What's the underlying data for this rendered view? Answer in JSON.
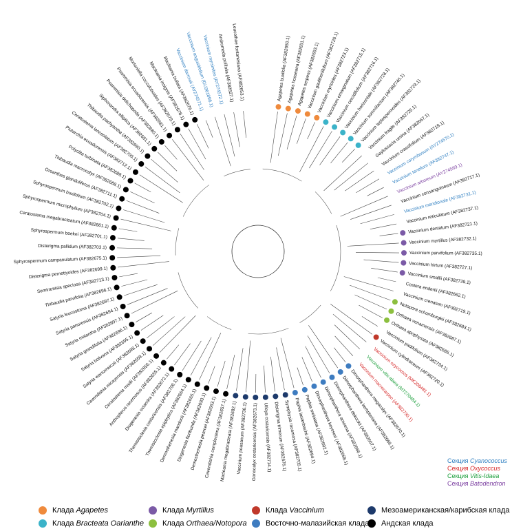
{
  "leaves": [
    {
      "name": "Agapetes buxifolia (AF382650.1)",
      "dot": "#ef8a3c"
    },
    {
      "name": "Agapetes hosseana (AF382651.1)",
      "dot": "#ef8a3c"
    },
    {
      "name": "Agapetes serpens (AF382653.1)",
      "dot": "#ef8a3c"
    },
    {
      "name": "Vaccinium gaultheriifolium (AF382726.1)",
      "dot": "#ef8a3c"
    },
    {
      "name": "Vaccinium myrtoides (AF382723.1)",
      "dot": "#ef8a3c"
    },
    {
      "name": "Vaccinium emarginatum (AF382715.1)",
      "dot": "#3bb3c9"
    },
    {
      "name": "Vaccinium cercidifolium (AF382716.1)",
      "dot": "#3bb3c9"
    },
    {
      "name": "Vaccinium horizontale (AF382728.1)",
      "dot": "#3bb3c9"
    },
    {
      "name": "Vaccinium summifactum (AF382740.1)",
      "dot": "#3bb3c9"
    },
    {
      "name": "Vaccinium leptospermoides (AF382729.1)",
      "dot": "#3bb3c9"
    },
    {
      "name": "Vaccinium fragile (AF382725.1)"
    },
    {
      "name": "Gaylussacia ursina (AF382667.1)"
    },
    {
      "name": "Vaccinium crassifolium (AF382718.1)"
    },
    {
      "name": "Vaccinium corymbosum (AY274570.1)",
      "text_color": "#2f7fc1"
    },
    {
      "name": "Vaccinium tenellum (AF382747.1)",
      "text_color": "#2f7fc1"
    },
    {
      "name": "Vaccinium arboreum (AY274569.1)",
      "text_color": "#7b3fa0"
    },
    {
      "name": "Vaccinium consanguineum (AF382717.1)"
    },
    {
      "name": "Vaccinium meridionale (AF382731.1)",
      "text_color": "#2f7fc1"
    },
    {
      "name": "Vaccinium reticulatum (AF382737.1)"
    },
    {
      "name": "Vaccinium dentatum (AF382721.1)",
      "dot": "#7b5aa6"
    },
    {
      "name": "Vaccinium myrtillus (AF382732.1)",
      "dot": "#7b5aa6"
    },
    {
      "name": "Vaccinium parvifolium (AF382735.1)",
      "dot": "#7b5aa6"
    },
    {
      "name": "Vaccinium hirtum (AF382727.1)",
      "dot": "#7b5aa6"
    },
    {
      "name": "Vaccinium smallii (AF382739.1)",
      "dot": "#7b5aa6"
    },
    {
      "name": "Costera endertii (AF382662.1)"
    },
    {
      "name": "Vaccinium crenatum (AF382719.1)"
    },
    {
      "name": "Notopora schomburgkii (AF382683.1)",
      "dot": "#8cbf3f"
    },
    {
      "name": "Orthaea venamensis (AF382687.1)",
      "dot": "#8cbf3f"
    },
    {
      "name": "Orthaea apophysata (AF382685.1)",
      "dot": "#8cbf3f"
    },
    {
      "name": "Vaccinium padifolium (AF382734.1)"
    },
    {
      "name": "Vaccinium cylindraceum (AF382720.1)",
      "dot": "#c0392b"
    },
    {
      "name": "Vaccinium oxycoccos (MK208481.1)",
      "text_color": "#d62728"
    },
    {
      "name": "Vaccinium vitis-idaea (MT270484.1)",
      "text_color": "#1a9e3a"
    },
    {
      "name": "Vaccinium macrocarpon (AF382730.1)",
      "text_color": "#d62728"
    },
    {
      "name": "Dimorphanthera megacalyx (AF382670.1)",
      "dot": "#3e7cc0"
    },
    {
      "name": "Dimorphanthera kempteriana (AF382669.1)",
      "dot": "#3e7cc0"
    },
    {
      "name": "Dimorphanthera dekockii (AF382667.1)",
      "dot": "#3e7cc0"
    },
    {
      "name": "Dimorphanthera amoena (AF382666.1)",
      "dot": "#3e7cc0"
    },
    {
      "name": "Dimorphanthera keysseri (AF382668.1)",
      "dot": "#3e7cc0"
    },
    {
      "name": "Paphia meiniana (AF382692.1)",
      "dot": "#3e7cc0"
    },
    {
      "name": "Paphia lauterbachii (AF382694.1)",
      "dot": "#3e7cc0"
    },
    {
      "name": "Symphysia racemosa (AF382705.1)",
      "dot": "#1d3a6b"
    },
    {
      "name": "Disterigma trimerum (AF382676.1)",
      "dot": "#1d3a6b"
    },
    {
      "name": "Utleya costaricensis (AF382714.1)",
      "dot": "#1d3a6b"
    },
    {
      "name": "Gonocalyx costaricensis (AF382673.1)",
      "dot": "#1d3a6b"
    },
    {
      "name": "Vaccinium poasanum (AF382736.1)",
      "dot": "#1d3a6b"
    },
    {
      "name": "Macleania megabracteata (AF382682.1)",
      "dot": "#1d3a6b"
    },
    {
      "name": "Cavendishia complectens (AF382657.1)",
      "dot": "#000000"
    },
    {
      "name": "Demosthenesia pearcei (AF382663.1)",
      "dot": "#000000"
    },
    {
      "name": "Diogenesia floribunda (AF382693.1)",
      "dot": "#000000"
    },
    {
      "name": "Demosthenesia mandonii (AF382665.1)",
      "dot": "#000000"
    },
    {
      "name": "Themistoclesia epiphytica (AF382664.1)",
      "dot": "#000000"
    },
    {
      "name": "Themistoclesia costaricensis (AF382706.1)",
      "dot": "#000000"
    },
    {
      "name": "Diogenesia octandra (AF382672.1)",
      "dot": "#000000"
    },
    {
      "name": "Anthopterus racemosus (AF382655.1)",
      "dot": "#000000"
    },
    {
      "name": "Ceratostema madii (AF382656.1)",
      "dot": "#000000"
    },
    {
      "name": "Cavendishia micayensis (AF382659.1)",
      "dot": "#000000"
    },
    {
      "name": "Satyria warszewiczii (AF382698.1)",
      "dot": "#000000"
    },
    {
      "name": "Satyria bolivana (AF382695.1)",
      "dot": "#000000"
    },
    {
      "name": "Satyria grandifolia (AF382696.1)",
      "dot": "#000000"
    },
    {
      "name": "Satyria meiantha (AF382697.1)",
      "dot": "#000000"
    },
    {
      "name": "Satyria panurensis (AF382694.1)",
      "dot": "#000000"
    },
    {
      "name": "Satyria leucostoma (AF382697.1)",
      "dot": "#000000"
    },
    {
      "name": "Thibaudia parvifolia (AF382696.1)",
      "dot": "#000000"
    },
    {
      "name": "Semiramisia speciosa (AF382713.1)",
      "dot": "#000000"
    },
    {
      "name": "Disterigma pernettyoides (AF382699.1)",
      "dot": "#000000"
    },
    {
      "name": "Sphyrospermum campanulatum (AF382675.1)",
      "dot": "#000000"
    },
    {
      "name": "Disterigma pallidum (AF382703.1)",
      "dot": "#000000"
    },
    {
      "name": "Sphyrospermum boekei (AF382701.1)",
      "dot": "#000000"
    },
    {
      "name": "Ceratostema megabracteatum (AF382661.1)",
      "dot": "#000000"
    },
    {
      "name": "Sphyrospermum microphyllum (AF382704.1)",
      "dot": "#000000"
    },
    {
      "name": "Sphyrospermum buxifolium (AF382702.1)",
      "dot": "#000000"
    },
    {
      "name": "Oreanthes glanduliferus (AF382711.1)",
      "dot": "#000000"
    },
    {
      "name": "Thibaudia macrocalyx (AF382688.1)",
      "dot": "#000000"
    },
    {
      "name": "Polyclita turbinata (AF382689.1)",
      "dot": "#000000"
    },
    {
      "name": "Plutarchia ecuadorensis (AF382712.1)",
      "dot": "#000000"
    },
    {
      "name": "Ceratostema lanceolatum (AF382700.1)",
      "dot": "#000000"
    },
    {
      "name": "Thibaudia pachyantha (AF382690.1)",
      "dot": "#000000"
    },
    {
      "name": "Siphonandra elliptica (AF382691.1)",
      "dot": "#000000"
    },
    {
      "name": "Psammisia dolichopoda (AF382680.1)",
      "dot": "#000000"
    },
    {
      "name": "Psammisia ecuadorensis (AF382681.1)",
      "dot": "#000000"
    },
    {
      "name": "Mortoniella coccoloboides (AF382679.1)",
      "dot": "#000000"
    },
    {
      "name": "Macleania insignis (AF382678.1)",
      "dot": "#000000"
    },
    {
      "name": "Macleania bullata (AF382676.1)",
      "dot": "#000000"
    },
    {
      "name": "Vaccinium darrowii (AY274571.1)",
      "text_color": "#2f7fc1"
    },
    {
      "name": "Vaccinium angustifolium (GU361896.1)",
      "text_color": "#2f7fc1"
    },
    {
      "name": "Vaccinium myrsinites (AY274572.1)",
      "text_color": "#2f7fc1"
    },
    {
      "name": "Andromeda polifolia (AF382627.1)"
    },
    {
      "name": "Leucothoe fontanesiana (AF382653.1)"
    }
  ],
  "sections": [
    {
      "prefix": "Секция",
      "name": "Cyanococcus",
      "color": "#2f7fc1"
    },
    {
      "prefix": "Секция",
      "name": "Oxycoccus",
      "color": "#d62728"
    },
    {
      "prefix": "Секция",
      "name": "Vitis-Idaea",
      "color": "#1a9e3a"
    },
    {
      "prefix": "Секция",
      "name": "Batodendron",
      "color": "#7b3fa0"
    }
  ],
  "legend": [
    {
      "prefix": "Клада",
      "name": "Agapetes",
      "color": "#ef8a3c"
    },
    {
      "prefix": "Клада",
      "name": "Bracteata Oarianthe",
      "color": "#3bb3c9"
    },
    {
      "prefix": "Клада",
      "name": "Myrtillus",
      "color": "#7b5aa6"
    },
    {
      "prefix": "Клада",
      "name": "Orthaea/Notopora",
      "color": "#8cbf3f"
    },
    {
      "prefix": "Клада",
      "name": "Vaccinium",
      "color": "#c0392b"
    },
    {
      "label": "Восточно-малазийская клада",
      "color": "#3e7cc0"
    },
    {
      "label": "Мезоамериканская/карибская клада",
      "color": "#1d3a6b"
    },
    {
      "label": "Андская клада",
      "color": "#000000"
    }
  ]
}
